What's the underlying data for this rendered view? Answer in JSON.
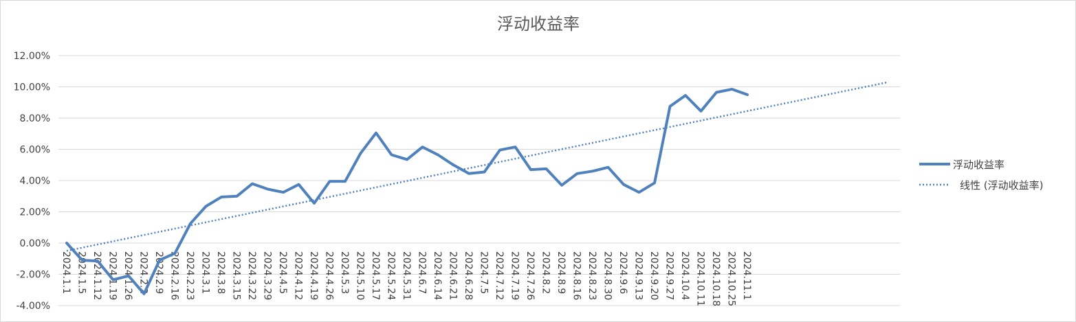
{
  "chart_data": {
    "type": "line",
    "title": "浮动收益率",
    "xlabel": "",
    "ylabel": "",
    "ylim": [
      -0.04,
      0.12
    ],
    "y_ticks": [
      "12.00%",
      "10.00%",
      "8.00%",
      "6.00%",
      "4.00%",
      "2.00%",
      "0.00%",
      "-2.00%",
      "-4.00%"
    ],
    "y_tick_values": [
      0.12,
      0.1,
      0.08,
      0.06,
      0.04,
      0.02,
      0.0,
      -0.02,
      -0.04
    ],
    "grid": true,
    "legend_position": "right",
    "categories": [
      "2024.1.1",
      "2024.1.5",
      "2024.1.12",
      "2024.1.19",
      "2024.1.26",
      "2024.2.2",
      "2024.2.9",
      "2024.2.16",
      "2024.2.23",
      "2024.3.1",
      "2024.3.8",
      "2024.3.15",
      "2024.3.22",
      "2024.3.29",
      "2024.4.5",
      "2024.4.12",
      "2024.4.19",
      "2024.4.26",
      "2024.5.3",
      "2024.5.10",
      "2024.5.17",
      "2024.5.24",
      "2024.5.31",
      "2024.6.7",
      "2024.6.14",
      "2024.6.21",
      "2024.6.28",
      "2024.7.5",
      "2024.7.12",
      "2024.7.19",
      "2024.7.26",
      "2024.8.2",
      "2024.8.9",
      "2024.8.16",
      "2024.8.23",
      "2024.8.30",
      "2024.9.6",
      "2024.9.13",
      "2024.9.20",
      "2024.9.27",
      "2024.10.4",
      "2024.10.11",
      "2024.10.18",
      "2024.10.25",
      "2024.11.1"
    ],
    "series": [
      {
        "name": "浮动收益率",
        "style": "solid",
        "color": "#4f81bd",
        "values": [
          0.0,
          -0.011,
          -0.0115,
          -0.0235,
          -0.021,
          -0.0325,
          -0.011,
          -0.0065,
          0.0125,
          0.0235,
          0.0295,
          0.03,
          0.038,
          0.0345,
          0.0325,
          0.0375,
          0.0255,
          0.0395,
          0.0395,
          0.0575,
          0.0705,
          0.0565,
          0.0535,
          0.0615,
          0.0565,
          0.05,
          0.0445,
          0.0455,
          0.0595,
          0.0615,
          0.047,
          0.0475,
          0.037,
          0.0445,
          0.046,
          0.0485,
          0.0375,
          0.0325,
          0.0385,
          0.0875,
          0.0945,
          0.0845,
          0.0965,
          0.0985,
          0.095
        ]
      },
      {
        "name": "线性 (浮动收益率)",
        "style": "dotted",
        "color": "#4f81bd",
        "trend_start": {
          "x": "2024.1.1",
          "y": -0.005
        },
        "trend_end": {
          "x": "2024.11.1",
          "y": 0.0845
        },
        "extends_periods": 9
      }
    ]
  }
}
